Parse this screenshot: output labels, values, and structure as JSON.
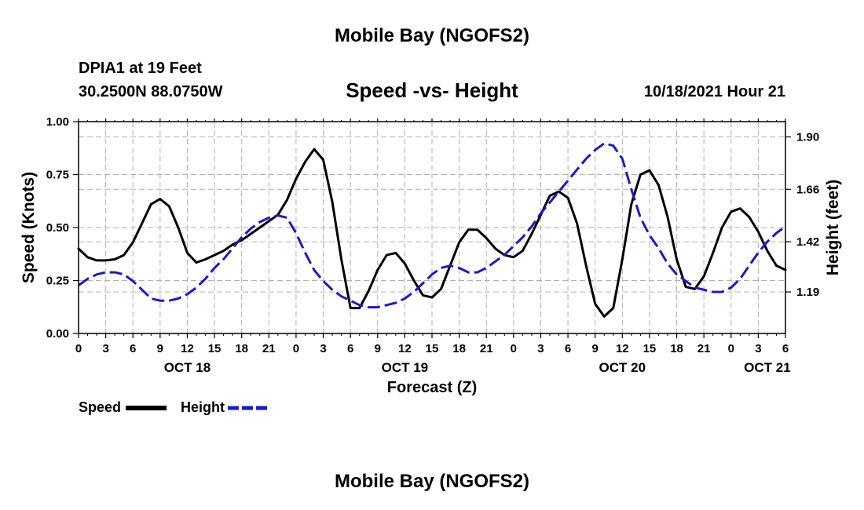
{
  "header": {
    "title": "Mobile Bay (NGOFS2)",
    "station": "DPIA1 at 19 Feet",
    "coords": "30.2500N  88.0750W",
    "subtitle": "Speed -vs- Height",
    "datetime": "10/18/2021 Hour 21"
  },
  "footer": {
    "title": "Mobile Bay (NGOFS2)"
  },
  "chart_data": {
    "type": "line",
    "xlabel": "Forecast (Z)",
    "ylabel_left": "Speed (Knots)",
    "ylabel_right": "Height (feet)",
    "x_range_hours": [
      0,
      78
    ],
    "y_left_range": [
      0,
      1
    ],
    "y_right_range": [
      1.0,
      1.97
    ],
    "x_tick_labels": [
      "0",
      "3",
      "6",
      "9",
      "12",
      "15",
      "18",
      "21",
      "0",
      "3",
      "6",
      "9",
      "12",
      "15",
      "18",
      "21",
      "0",
      "3",
      "6",
      "9",
      "12",
      "15",
      "18",
      "21",
      "0",
      "3",
      "6"
    ],
    "date_labels": [
      {
        "label": "OCT 18",
        "hour": 12
      },
      {
        "label": "OCT 19",
        "hour": 36
      },
      {
        "label": "OCT 20",
        "hour": 60
      },
      {
        "label": "OCT 21",
        "hour": 76
      }
    ],
    "y_left_ticks": [
      "0.00",
      "0.25",
      "0.50",
      "0.75",
      "1.00"
    ],
    "y_left_tick_values": [
      0,
      0.25,
      0.5,
      0.75,
      1.0
    ],
    "y_right_ticks": [
      "1.19",
      "1.42",
      "1.66",
      "1.90"
    ],
    "y_right_tick_values": [
      1.19,
      1.42,
      1.66,
      1.9
    ],
    "grid": true,
    "legend": {
      "position": "bottom-left",
      "speed_label": "Speed",
      "height_label": "Height"
    },
    "colors": {
      "speed": "#000000",
      "height": "#1a1acc",
      "grid": "#b0b0b0"
    },
    "series": [
      {
        "name": "Speed",
        "axis": "left",
        "style": "solid",
        "x": [
          0,
          1,
          2,
          3,
          4,
          5,
          6,
          7,
          8,
          9,
          10,
          11,
          12,
          13,
          14,
          15,
          16,
          17,
          18,
          19,
          20,
          21,
          22,
          23,
          24,
          25,
          26,
          27,
          28,
          29,
          30,
          31,
          32,
          33,
          34,
          35,
          36,
          37,
          38,
          39,
          40,
          41,
          42,
          43,
          44,
          45,
          46,
          47,
          48,
          49,
          50,
          51,
          52,
          53,
          54,
          55,
          56,
          57,
          58,
          59,
          60,
          61,
          62,
          63,
          64,
          65,
          66,
          67,
          68,
          69,
          70,
          71,
          72,
          73,
          74,
          75,
          76,
          77,
          78
        ],
        "values": [
          0.4,
          0.36,
          0.345,
          0.345,
          0.35,
          0.37,
          0.43,
          0.52,
          0.61,
          0.635,
          0.6,
          0.5,
          0.38,
          0.335,
          0.35,
          0.37,
          0.39,
          0.42,
          0.44,
          0.47,
          0.5,
          0.53,
          0.56,
          0.63,
          0.73,
          0.81,
          0.87,
          0.82,
          0.62,
          0.35,
          0.12,
          0.12,
          0.2,
          0.3,
          0.37,
          0.38,
          0.33,
          0.25,
          0.18,
          0.17,
          0.21,
          0.32,
          0.43,
          0.49,
          0.49,
          0.45,
          0.4,
          0.37,
          0.36,
          0.39,
          0.47,
          0.56,
          0.65,
          0.67,
          0.64,
          0.52,
          0.32,
          0.14,
          0.08,
          0.12,
          0.35,
          0.61,
          0.75,
          0.77,
          0.7,
          0.55,
          0.35,
          0.22,
          0.21,
          0.27,
          0.38,
          0.5,
          0.575,
          0.59,
          0.55,
          0.48,
          0.39,
          0.32,
          0.3
        ]
      },
      {
        "name": "Height",
        "axis": "right",
        "style": "dashed",
        "x": [
          0,
          1,
          2,
          3,
          4,
          5,
          6,
          7,
          8,
          9,
          10,
          11,
          12,
          13,
          14,
          15,
          16,
          17,
          18,
          19,
          20,
          21,
          22,
          23,
          24,
          25,
          26,
          27,
          28,
          29,
          30,
          31,
          32,
          33,
          34,
          35,
          36,
          37,
          38,
          39,
          40,
          41,
          42,
          43,
          44,
          45,
          46,
          47,
          48,
          49,
          50,
          51,
          52,
          53,
          54,
          55,
          56,
          57,
          58,
          59,
          60,
          61,
          62,
          63,
          64,
          65,
          66,
          67,
          68,
          69,
          70,
          71,
          72,
          73,
          74,
          75,
          76,
          77,
          78
        ],
        "values": [
          1.22,
          1.25,
          1.27,
          1.28,
          1.28,
          1.27,
          1.24,
          1.2,
          1.16,
          1.15,
          1.15,
          1.16,
          1.18,
          1.21,
          1.25,
          1.3,
          1.34,
          1.39,
          1.44,
          1.48,
          1.51,
          1.53,
          1.54,
          1.53,
          1.46,
          1.37,
          1.29,
          1.24,
          1.2,
          1.17,
          1.15,
          1.13,
          1.12,
          1.12,
          1.13,
          1.14,
          1.16,
          1.19,
          1.23,
          1.27,
          1.3,
          1.31,
          1.3,
          1.28,
          1.28,
          1.3,
          1.33,
          1.36,
          1.4,
          1.44,
          1.49,
          1.55,
          1.6,
          1.65,
          1.7,
          1.75,
          1.8,
          1.84,
          1.87,
          1.86,
          1.8,
          1.66,
          1.53,
          1.45,
          1.39,
          1.32,
          1.27,
          1.24,
          1.21,
          1.2,
          1.19,
          1.19,
          1.21,
          1.25,
          1.31,
          1.37,
          1.42,
          1.46,
          1.49
        ]
      }
    ]
  }
}
